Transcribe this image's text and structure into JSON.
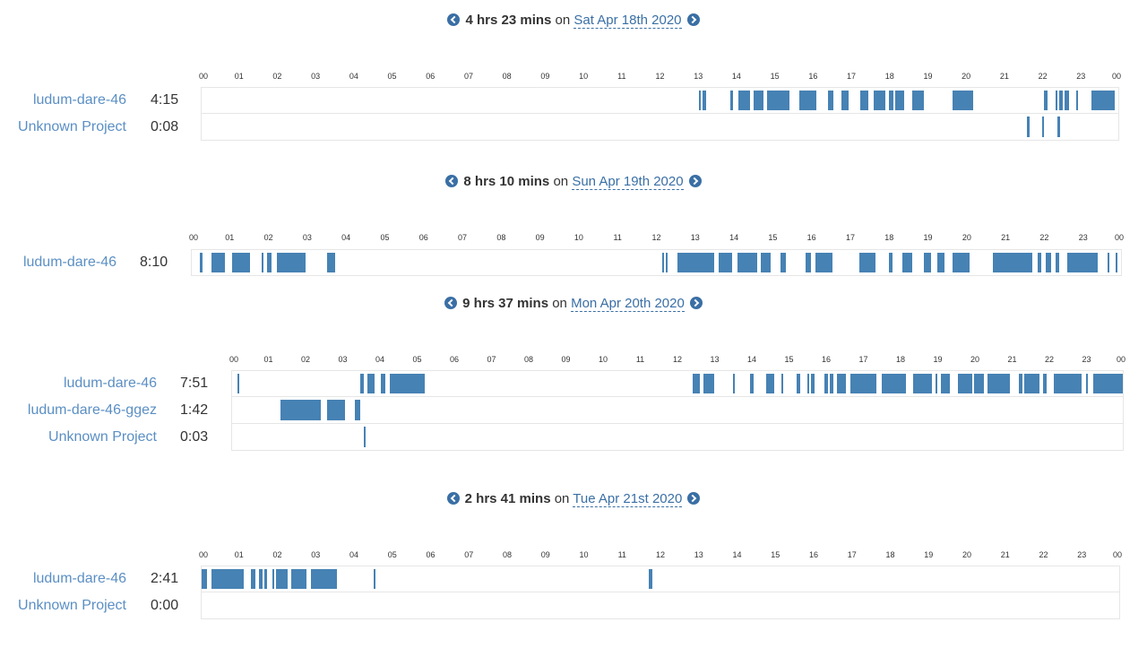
{
  "accent": "#4682b4",
  "link_color": "#5b8fc4",
  "nav_icons": {
    "prev": "chevron-left-icon",
    "next": "chevron-right-icon"
  },
  "hour_ticks": [
    "00",
    "01",
    "02",
    "03",
    "04",
    "05",
    "06",
    "07",
    "08",
    "09",
    "10",
    "11",
    "12",
    "13",
    "14",
    "15",
    "16",
    "17",
    "18",
    "19",
    "20",
    "21",
    "22",
    "23",
    "00"
  ],
  "days": [
    {
      "duration": "4 hrs 23 mins",
      "on": "on",
      "date": "Sat Apr 18th 2020",
      "projects": [
        {
          "name": "ludum-dare-46",
          "time": "4:15",
          "segments": [
            [
              13.03,
              13.05
            ],
            [
              13.12,
              13.2
            ],
            [
              13.85,
              13.92
            ],
            [
              14.05,
              14.35
            ],
            [
              14.45,
              14.7
            ],
            [
              14.8,
              15.4
            ],
            [
              15.65,
              16.1
            ],
            [
              16.4,
              16.55
            ],
            [
              16.75,
              16.95
            ],
            [
              17.25,
              17.45
            ],
            [
              17.6,
              17.9
            ],
            [
              18.0,
              18.1
            ],
            [
              18.15,
              18.4
            ],
            [
              18.6,
              18.9
            ],
            [
              19.65,
              20.2
            ],
            [
              22.05,
              22.15
            ],
            [
              22.35,
              22.4
            ],
            [
              22.45,
              22.55
            ],
            [
              22.6,
              22.7
            ],
            [
              22.9,
              22.95
            ],
            [
              23.3,
              23.9
            ]
          ]
        },
        {
          "name": "Unknown Project",
          "time": "0:08",
          "segments": [
            [
              21.6,
              21.67
            ],
            [
              22.0,
              22.04
            ],
            [
              22.4,
              22.47
            ]
          ]
        }
      ]
    },
    {
      "duration": "8 hrs 10 mins",
      "on": "on",
      "date": "Sun Apr 19th 2020",
      "projects": [
        {
          "name": "ludum-dare-46",
          "time": "8:10",
          "segments": [
            [
              0.2,
              0.28
            ],
            [
              0.5,
              0.85
            ],
            [
              1.05,
              1.5
            ],
            [
              1.8,
              1.85
            ],
            [
              1.95,
              2.05
            ],
            [
              2.2,
              2.95
            ],
            [
              3.5,
              3.7
            ],
            [
              12.15,
              12.2
            ],
            [
              12.25,
              12.3
            ],
            [
              12.55,
              13.5
            ],
            [
              13.6,
              13.95
            ],
            [
              14.1,
              14.6
            ],
            [
              14.7,
              14.95
            ],
            [
              15.2,
              15.35
            ],
            [
              15.85,
              16.0
            ],
            [
              16.1,
              16.55
            ],
            [
              17.25,
              17.65
            ],
            [
              18.0,
              18.1
            ],
            [
              18.35,
              18.6
            ],
            [
              18.9,
              19.1
            ],
            [
              19.25,
              19.45
            ],
            [
              19.65,
              20.1
            ],
            [
              20.7,
              21.7
            ],
            [
              21.85,
              21.95
            ],
            [
              22.05,
              22.2
            ],
            [
              22.3,
              22.4
            ],
            [
              22.6,
              23.4
            ],
            [
              23.65,
              23.7
            ],
            [
              23.85,
              23.9
            ]
          ]
        }
      ]
    },
    {
      "duration": "9 hrs 37 mins",
      "on": "on",
      "date": "Mon Apr 20th 2020",
      "projects": [
        {
          "name": "ludum-dare-46",
          "time": "7:51",
          "segments": [
            [
              0.15,
              0.2
            ],
            [
              3.45,
              3.55
            ],
            [
              3.65,
              3.85
            ],
            [
              4.0,
              4.12
            ],
            [
              4.25,
              5.2
            ],
            [
              12.4,
              12.6
            ],
            [
              12.7,
              13.0
            ],
            [
              13.5,
              13.55
            ],
            [
              13.95,
              14.05
            ],
            [
              14.4,
              14.6
            ],
            [
              14.8,
              14.85
            ],
            [
              15.2,
              15.3
            ],
            [
              15.5,
              15.55
            ],
            [
              15.6,
              15.7
            ],
            [
              15.95,
              16.05
            ],
            [
              16.1,
              16.2
            ],
            [
              16.3,
              16.55
            ],
            [
              16.65,
              17.35
            ],
            [
              17.5,
              18.15
            ],
            [
              18.35,
              18.85
            ],
            [
              18.95,
              19.0
            ],
            [
              19.1,
              19.35
            ],
            [
              19.55,
              19.95
            ],
            [
              20.0,
              20.25
            ],
            [
              20.35,
              20.95
            ],
            [
              21.2,
              21.3
            ],
            [
              21.35,
              21.75
            ],
            [
              21.85,
              21.95
            ],
            [
              22.15,
              22.9
            ],
            [
              23.0,
              23.05
            ],
            [
              23.2,
              23.4
            ],
            [
              23.4,
              24.0
            ]
          ]
        },
        {
          "name": "ludum-dare-46-ggez",
          "time": "1:42",
          "segments": [
            [
              1.3,
              2.4
            ],
            [
              2.55,
              3.05
            ],
            [
              3.3,
              3.45
            ]
          ]
        },
        {
          "name": "Unknown Project",
          "time": "0:03",
          "segments": [
            [
              3.55,
              3.6
            ]
          ]
        }
      ]
    },
    {
      "duration": "2 hrs 41 mins",
      "on": "on",
      "date": "Tue Apr 21st 2020",
      "projects": [
        {
          "name": "ludum-dare-46",
          "time": "2:41",
          "segments": [
            [
              0.0,
              0.15
            ],
            [
              0.25,
              1.1
            ],
            [
              1.3,
              1.4
            ],
            [
              1.5,
              1.6
            ],
            [
              1.65,
              1.7
            ],
            [
              1.85,
              1.9
            ],
            [
              1.95,
              2.25
            ],
            [
              2.35,
              2.75
            ],
            [
              2.85,
              3.55
            ],
            [
              4.5,
              4.52
            ],
            [
              11.7,
              11.8
            ]
          ]
        },
        {
          "name": "Unknown Project",
          "time": "0:00",
          "segments": []
        }
      ]
    }
  ]
}
